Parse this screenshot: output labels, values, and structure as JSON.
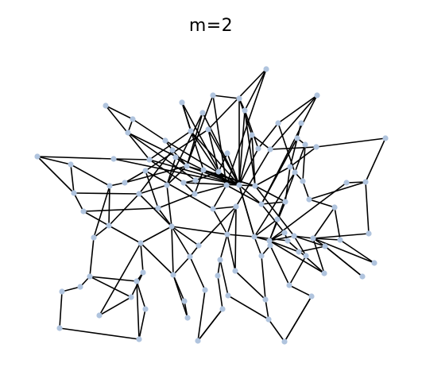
{
  "figure": {
    "title": "m=2"
  },
  "style": {
    "node_color": "#b0c4de",
    "edge_color": "#000000"
  }
}
